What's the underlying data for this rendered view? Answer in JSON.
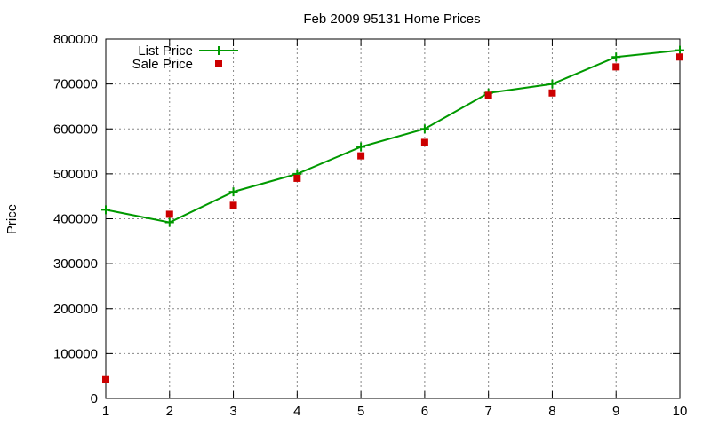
{
  "chart_data": {
    "type": "line",
    "title": "Feb 2009 95131 Home Prices",
    "xlabel": "",
    "ylabel": "Price",
    "xlim": [
      1,
      10
    ],
    "ylim": [
      0,
      800000
    ],
    "x_ticks": [
      "1",
      "2",
      "3",
      "4",
      "5",
      "6",
      "7",
      "8",
      "9",
      "10"
    ],
    "y_ticks": [
      "0",
      "100000",
      "200000",
      "300000",
      "400000",
      "500000",
      "600000",
      "700000",
      "800000"
    ],
    "grid": true,
    "legend_position": "top-left",
    "series": [
      {
        "name": "List Price",
        "style": "line+cross",
        "color": "#009900",
        "x": [
          1,
          2,
          3,
          4,
          5,
          6,
          7,
          8,
          9,
          10
        ],
        "y": [
          420000,
          392000,
          460000,
          500000,
          560000,
          600000,
          680000,
          700000,
          760000,
          775000
        ]
      },
      {
        "name": "Sale Price",
        "style": "square-marker",
        "color": "#cc0000",
        "x": [
          1,
          2,
          3,
          4,
          5,
          6,
          7,
          8,
          9,
          10
        ],
        "y": [
          42000,
          410000,
          430000,
          490000,
          540000,
          570000,
          675000,
          680000,
          738000,
          760000
        ]
      }
    ]
  }
}
